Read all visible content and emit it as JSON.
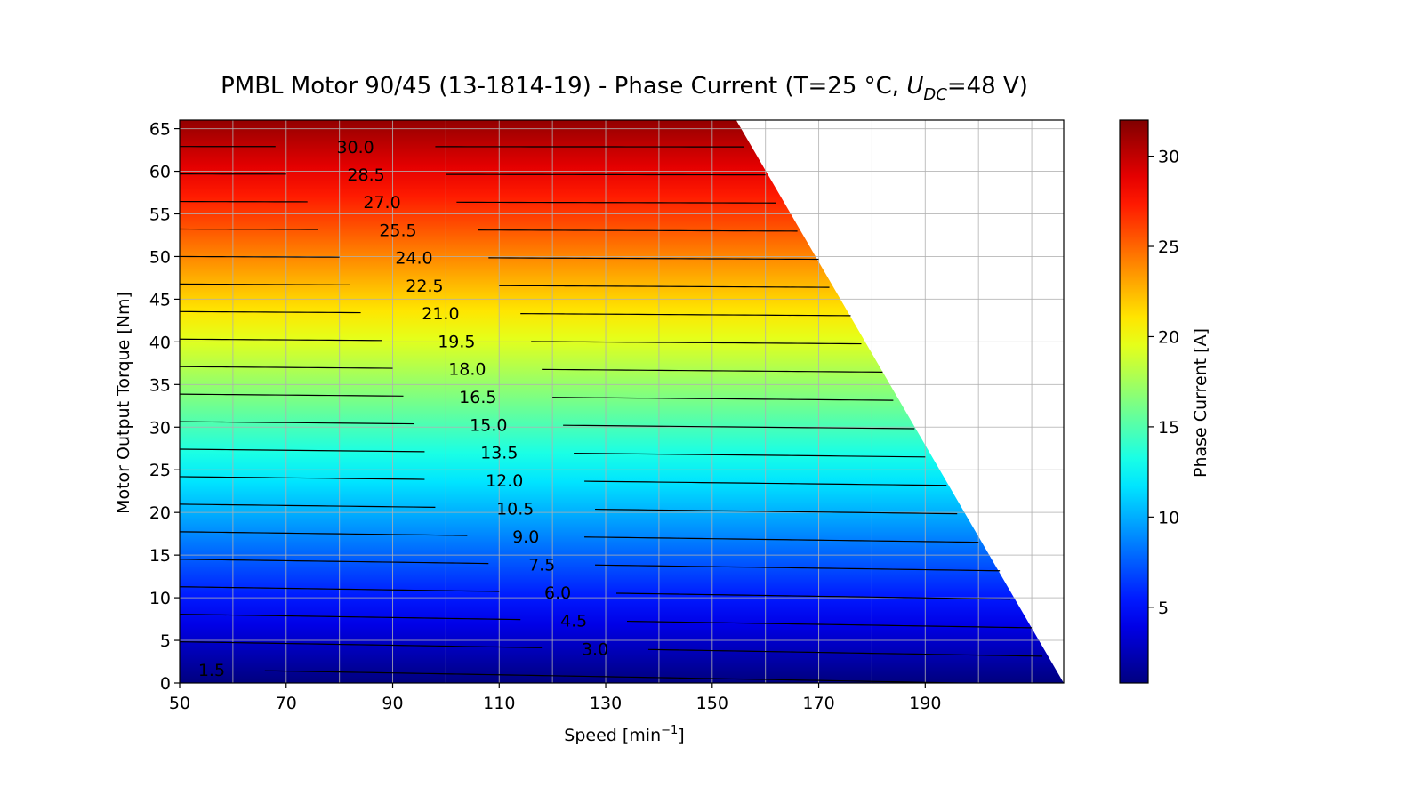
{
  "chart_data": {
    "type": "heatmap",
    "subtype": "filled-contour",
    "title": {
      "prefix": "PMBL Motor 90/45 (13-1814-19) - Phase Current (T=25 °C, ",
      "symbol": "U",
      "subscript": "DC",
      "suffix": "=48 V)"
    },
    "xlabel": "Speed [min",
    "xlabel_sup": "−1",
    "xlabel_end": "]",
    "ylabel": "Motor Output Torque [Nm]",
    "colorbar_label": "Phase Current [A]",
    "xlim": [
      50,
      216
    ],
    "ylim": [
      0,
      66
    ],
    "xticks": [
      50,
      70,
      90,
      110,
      130,
      150,
      170,
      190
    ],
    "yticks": [
      0,
      5,
      10,
      15,
      20,
      25,
      30,
      35,
      40,
      45,
      50,
      55,
      60,
      65
    ],
    "x_grid_lines": [
      50,
      60,
      70,
      80,
      90,
      100,
      110,
      120,
      130,
      140,
      150,
      160,
      170,
      180,
      190,
      200,
      210
    ],
    "grid": true,
    "colormap": "jet",
    "colorbar_range": [
      0.8,
      32
    ],
    "colorbar_ticks": [
      5,
      10,
      15,
      20,
      25,
      30
    ],
    "operating_boundary": [
      [
        154.5,
        66
      ],
      [
        216,
        0
      ]
    ],
    "current_model": {
      "per_nm_at_50": 0.465,
      "offset_at_50": 0.75,
      "per_nm_at_216": 0.452,
      "offset_at_216": 1.6
    },
    "contour_levels": [
      {
        "value": 1.5,
        "label": "1.5",
        "label_x": 56
      },
      {
        "value": 3.0,
        "label": "3.0",
        "label_x": 128
      },
      {
        "value": 4.5,
        "label": "4.5",
        "label_x": 124
      },
      {
        "value": 6.0,
        "label": "6.0",
        "label_x": 121
      },
      {
        "value": 7.5,
        "label": "7.5",
        "label_x": 118
      },
      {
        "value": 9.0,
        "label": "9.0",
        "label_x": 115
      },
      {
        "value": 10.5,
        "label": "10.5",
        "label_x": 113
      },
      {
        "value": 12.0,
        "label": "12.0",
        "label_x": 111
      },
      {
        "value": 13.5,
        "label": "13.5",
        "label_x": 110
      },
      {
        "value": 15.0,
        "label": "15.0",
        "label_x": 108
      },
      {
        "value": 16.5,
        "label": "16.5",
        "label_x": 106
      },
      {
        "value": 18.0,
        "label": "18.0",
        "label_x": 104
      },
      {
        "value": 19.5,
        "label": "19.5",
        "label_x": 102
      },
      {
        "value": 21.0,
        "label": "21.0",
        "label_x": 99
      },
      {
        "value": 22.5,
        "label": "22.5",
        "label_x": 96
      },
      {
        "value": 24.0,
        "label": "24.0",
        "label_x": 94
      },
      {
        "value": 25.5,
        "label": "25.5",
        "label_x": 91
      },
      {
        "value": 27.0,
        "label": "27.0",
        "label_x": 88
      },
      {
        "value": 28.5,
        "label": "28.5",
        "label_x": 85
      },
      {
        "value": 30.0,
        "label": "30.0",
        "label_x": 83
      }
    ]
  }
}
